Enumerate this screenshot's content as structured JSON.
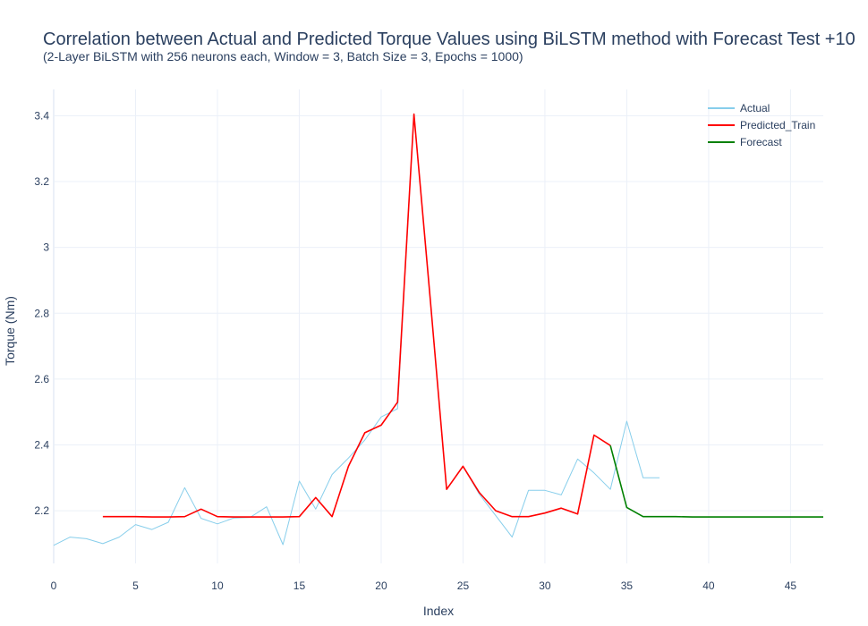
{
  "chart_data": {
    "type": "line",
    "title": "Correlation between Actual and Predicted Torque Values using BiLSTM method with Forecast Test +10",
    "subtitle": "(2-Layer BiLSTM with 256 neurons each, Window = 3, Batch Size = 3, Epochs = 1000)",
    "xlabel": "Index",
    "ylabel": "Torque (Nm)",
    "xlim": [
      0,
      47
    ],
    "ylim": [
      2.04,
      3.48
    ],
    "xticks": [
      0,
      5,
      10,
      15,
      20,
      25,
      30,
      35,
      40,
      45
    ],
    "yticks": [
      2.2,
      2.4,
      2.6,
      2.8,
      3,
      3.2,
      3.4
    ],
    "ytick_labels": [
      "2.2",
      "2.4",
      "2.6",
      "2.8",
      "3",
      "3.2",
      "3.4"
    ],
    "grid": true,
    "legend_position": "top-right",
    "series": [
      {
        "name": "Actual",
        "color": "#87ceeb",
        "x": [
          0,
          1,
          2,
          3,
          4,
          5,
          6,
          7,
          8,
          9,
          10,
          11,
          12,
          13,
          14,
          15,
          16,
          17,
          18,
          19,
          20,
          21,
          22,
          23,
          24,
          25,
          26,
          27,
          28,
          29,
          30,
          31,
          32,
          33,
          34,
          35,
          36,
          37
        ],
        "y": [
          2.095,
          2.12,
          2.115,
          2.1,
          2.12,
          2.158,
          2.143,
          2.165,
          2.27,
          2.177,
          2.16,
          2.178,
          2.18,
          2.212,
          2.097,
          2.29,
          2.205,
          2.31,
          2.36,
          2.415,
          2.485,
          2.51,
          3.405,
          2.84,
          2.265,
          2.335,
          2.25,
          2.185,
          2.12,
          2.262,
          2.262,
          2.248,
          2.357,
          2.315,
          2.265,
          2.472,
          2.3,
          2.3
        ]
      },
      {
        "name": "Predicted_Train",
        "color": "#ff0000",
        "x": [
          3,
          4,
          5,
          6,
          7,
          8,
          9,
          10,
          11,
          12,
          13,
          14,
          15,
          16,
          17,
          18,
          19,
          20,
          21,
          22,
          23,
          24,
          25,
          26,
          27,
          28,
          29,
          30,
          31,
          32,
          33,
          34
        ],
        "y": [
          2.182,
          2.182,
          2.182,
          2.181,
          2.181,
          2.182,
          2.205,
          2.182,
          2.181,
          2.181,
          2.181,
          2.181,
          2.182,
          2.24,
          2.182,
          2.335,
          2.437,
          2.46,
          2.53,
          3.405,
          2.84,
          2.265,
          2.335,
          2.255,
          2.2,
          2.182,
          2.182,
          2.193,
          2.208,
          2.19,
          2.43,
          2.398
        ]
      },
      {
        "name": "Forecast",
        "color": "#008000",
        "x": [
          34,
          35,
          36,
          37,
          38,
          39,
          40,
          41,
          42,
          43,
          44,
          45,
          46,
          47
        ],
        "y": [
          2.398,
          2.21,
          2.182,
          2.182,
          2.182,
          2.181,
          2.181,
          2.181,
          2.181,
          2.181,
          2.181,
          2.181,
          2.181,
          2.181
        ]
      }
    ]
  }
}
